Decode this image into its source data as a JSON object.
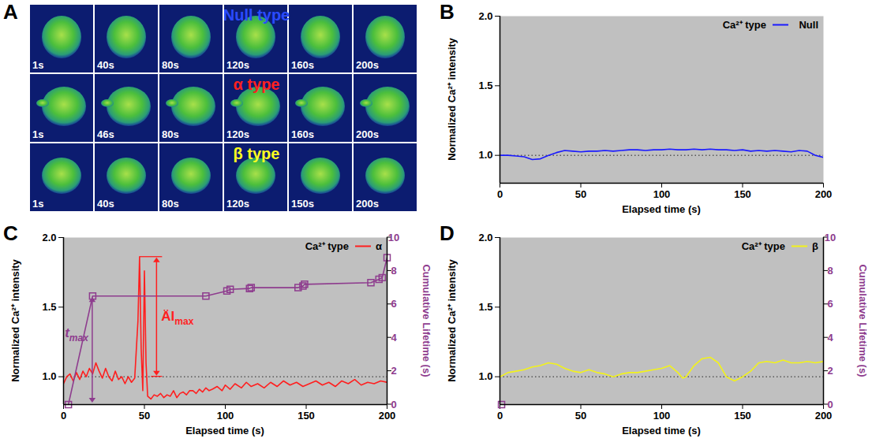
{
  "chart_data": [
    {
      "panel": "A",
      "type": "image_grid",
      "rows": [
        {
          "title": "Null type",
          "color": "#2a4bff",
          "frames": [
            "1s",
            "40s",
            "80s",
            "120s",
            "160s",
            "200s"
          ]
        },
        {
          "title": "α type",
          "color": "#ff2020",
          "frames": [
            "1s",
            "46s",
            "80s",
            "120s",
            "160s",
            "200s"
          ]
        },
        {
          "title": "β type",
          "color": "#ffff20",
          "frames": [
            "1s",
            "40s",
            "80s",
            "120s",
            "150s",
            "200s"
          ]
        }
      ]
    },
    {
      "panel": "B",
      "type": "line",
      "legend_title": "Ca²⁺ type",
      "legend": "top-right",
      "xlabel": "Elapsed time (s)",
      "ylabel": "Normalized Ca²⁺ intensity",
      "xlim": [
        0,
        200
      ],
      "xticks": [
        0,
        50,
        100,
        150,
        200
      ],
      "ylim": [
        0.8,
        2.0
      ],
      "yticks": [
        {
          "value": 1,
          "label": "1.0"
        },
        1.5,
        {
          "value": 2,
          "label": "2.0"
        }
      ],
      "baseline": 1,
      "series": [
        {
          "name": "Null",
          "color": "#1a1aff",
          "x": [
            0,
            5,
            10,
            15,
            20,
            25,
            30,
            35,
            40,
            45,
            50,
            55,
            60,
            65,
            70,
            75,
            80,
            85,
            90,
            95,
            100,
            105,
            110,
            115,
            120,
            125,
            130,
            135,
            140,
            145,
            150,
            155,
            160,
            165,
            170,
            175,
            180,
            185,
            190,
            195,
            200
          ],
          "values": [
            1.0,
            1.0,
            0.995,
            0.99,
            0.97,
            0.975,
            1.0,
            1.02,
            1.035,
            1.03,
            1.025,
            1.03,
            1.03,
            1.035,
            1.03,
            1.035,
            1.04,
            1.04,
            1.035,
            1.04,
            1.04,
            1.045,
            1.04,
            1.04,
            1.045,
            1.04,
            1.045,
            1.04,
            1.04,
            1.035,
            1.04,
            1.03,
            1.035,
            1.03,
            1.035,
            1.03,
            1.025,
            1.035,
            1.03,
            1.0,
            0.985
          ]
        }
      ]
    },
    {
      "panel": "C",
      "type": "line",
      "legend_title": "Ca²⁺ type",
      "legend": "top-right",
      "xlabel": "Elapsed time (s)",
      "ylabel": "Normalized Ca²⁺ intensity",
      "y2label": "Cumulative Lifetime (s)",
      "xlim": [
        0,
        200
      ],
      "xticks": [
        0,
        50,
        100,
        150,
        200
      ],
      "ylim": [
        0.8,
        2.0
      ],
      "yticks": [
        {
          "value": 1,
          "label": "1.0"
        },
        1.5,
        {
          "value": 2,
          "label": "2.0"
        }
      ],
      "y2lim": [
        0,
        10
      ],
      "y2ticks": [
        0,
        2,
        4,
        6,
        8,
        10
      ],
      "baseline": 1,
      "series": [
        {
          "name": "α",
          "color": "#ff1f1f",
          "x": [
            0,
            2,
            4,
            6,
            8,
            10,
            12,
            14,
            16,
            18,
            20,
            22,
            24,
            26,
            28,
            30,
            32,
            34,
            36,
            38,
            40,
            42,
            44,
            46,
            47,
            48,
            49,
            50,
            51,
            52,
            54,
            56,
            58,
            60,
            62,
            64,
            66,
            68,
            70,
            72,
            74,
            76,
            78,
            80,
            82,
            84,
            86,
            88,
            90,
            92,
            95,
            98,
            100,
            103,
            106,
            110,
            113,
            116,
            120,
            124,
            128,
            132,
            136,
            140,
            144,
            148,
            152,
            156,
            160,
            164,
            168,
            172,
            176,
            180,
            184,
            188,
            192,
            196,
            200
          ],
          "values": [
            0.95,
            1.0,
            1.02,
            0.97,
            1.03,
            0.98,
            1.04,
            1.0,
            1.06,
            1.02,
            1.1,
            1.04,
            0.99,
            1.06,
            1.0,
            0.97,
            1.04,
            0.98,
            1.0,
            0.95,
            1.0,
            0.96,
            0.99,
            1.4,
            1.86,
            1.2,
            0.9,
            1.76,
            1.1,
            0.86,
            0.84,
            0.87,
            0.86,
            0.88,
            0.85,
            0.87,
            0.86,
            0.9,
            0.85,
            0.88,
            0.89,
            0.87,
            0.9,
            0.9,
            0.88,
            0.91,
            0.89,
            0.92,
            0.9,
            0.91,
            0.93,
            0.9,
            0.94,
            0.91,
            0.95,
            0.92,
            0.96,
            0.93,
            0.95,
            0.92,
            0.96,
            0.93,
            0.97,
            0.94,
            0.96,
            0.93,
            0.95,
            0.97,
            0.94,
            0.96,
            0.93,
            0.97,
            0.95,
            0.98,
            0.94,
            0.96,
            0.95,
            0.97,
            0.96
          ]
        },
        {
          "color": "#8e3c8e",
          "marker": "square",
          "axis": "y2",
          "x": [
            3,
            18,
            88,
            101,
            103,
            115,
            116,
            145,
            148,
            149,
            190,
            195,
            197,
            200
          ],
          "values": [
            0,
            6.5,
            6.5,
            6.8,
            6.9,
            6.95,
            7.0,
            7.0,
            7.1,
            7.2,
            7.3,
            7.5,
            7.6,
            8.8
          ]
        }
      ],
      "annotations": [
        {
          "text": "t",
          "subscript": "max",
          "color": "#8e3c8e"
        },
        {
          "text": "ÄI",
          "subscript": "max",
          "color": "#ff1f1f"
        }
      ]
    },
    {
      "panel": "D",
      "type": "line",
      "legend_title": "Ca²⁺ type",
      "legend": "top-right",
      "xlabel": "Elapsed time (s)",
      "ylabel": "Normalized Ca²⁺ intensity",
      "y2label": "Cumulative Lifetime (s)",
      "xlim": [
        0,
        200
      ],
      "xticks": [
        0,
        50,
        100,
        150,
        200
      ],
      "ylim": [
        0.8,
        2.0
      ],
      "yticks": [
        {
          "value": 1,
          "label": "1.0"
        },
        1.5,
        {
          "value": 2,
          "label": "2.0"
        }
      ],
      "y2lim": [
        0,
        10
      ],
      "y2ticks": [
        0,
        2,
        4,
        6,
        8,
        10
      ],
      "baseline": 1,
      "series": [
        {
          "name": "β",
          "color": "#f2f21a",
          "x": [
            0,
            5,
            10,
            15,
            20,
            25,
            30,
            35,
            40,
            45,
            50,
            55,
            60,
            65,
            70,
            75,
            80,
            85,
            90,
            95,
            100,
            105,
            110,
            113,
            115,
            120,
            125,
            130,
            135,
            140,
            145,
            150,
            155,
            160,
            165,
            170,
            175,
            180,
            185,
            190,
            195,
            200
          ],
          "values": [
            1.0,
            1.03,
            1.04,
            1.05,
            1.07,
            1.08,
            1.1,
            1.09,
            1.06,
            1.04,
            1.03,
            1.05,
            1.03,
            1.02,
            1.0,
            1.02,
            1.03,
            1.03,
            1.04,
            1.05,
            1.06,
            1.08,
            1.03,
            0.99,
            1.0,
            1.08,
            1.13,
            1.14,
            1.1,
            1.0,
            0.97,
            1.0,
            1.04,
            1.1,
            1.11,
            1.1,
            1.12,
            1.1,
            1.1,
            1.11,
            1.1,
            1.11
          ]
        },
        {
          "color": "#8e3c8e",
          "marker": "square",
          "axis": "y2",
          "x": [
            1
          ],
          "values": [
            0
          ]
        }
      ]
    }
  ]
}
